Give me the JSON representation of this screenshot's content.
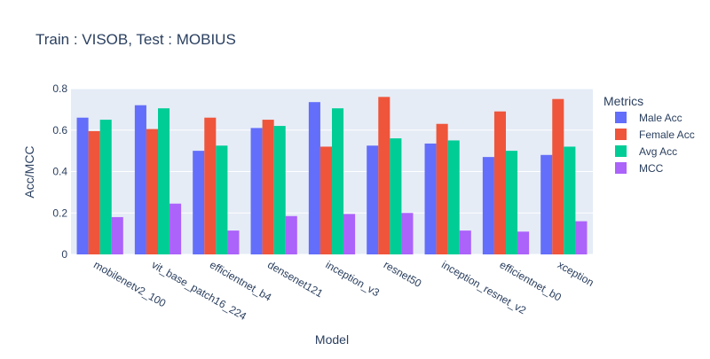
{
  "chart_data": {
    "type": "bar",
    "title": "Train : VISOB, Test : MOBIUS",
    "xlabel": "Model",
    "ylabel": "Acc/MCC",
    "ylim": [
      0,
      0.8
    ],
    "yticks": [
      0,
      0.2,
      0.4,
      0.6,
      0.8
    ],
    "ytick_labels": [
      "0",
      "0.2",
      "0.4",
      "0.6",
      "0.8"
    ],
    "grid": true,
    "legend_title": "Metrics",
    "legend_position": "right",
    "categories": [
      "mobilenetv2_100",
      "vit_base_patch16_224",
      "efficientnet_b4",
      "densenet121",
      "inception_v3",
      "resnet50",
      "inception_resnet_v2",
      "efficientnet_b0",
      "xception"
    ],
    "series": [
      {
        "name": "Male Acc",
        "color": "#636efa",
        "values": [
          0.66,
          0.72,
          0.5,
          0.61,
          0.735,
          0.525,
          0.535,
          0.47,
          0.48
        ]
      },
      {
        "name": "Female Acc",
        "color": "#ef553b",
        "values": [
          0.595,
          0.605,
          0.66,
          0.65,
          0.52,
          0.76,
          0.63,
          0.69,
          0.75
        ]
      },
      {
        "name": "Avg Acc",
        "color": "#00cc96",
        "values": [
          0.65,
          0.705,
          0.525,
          0.62,
          0.705,
          0.56,
          0.55,
          0.5,
          0.52
        ]
      },
      {
        "name": "MCC",
        "color": "#ab63fa",
        "values": [
          0.18,
          0.245,
          0.115,
          0.185,
          0.195,
          0.2,
          0.115,
          0.11,
          0.16
        ]
      }
    ]
  }
}
